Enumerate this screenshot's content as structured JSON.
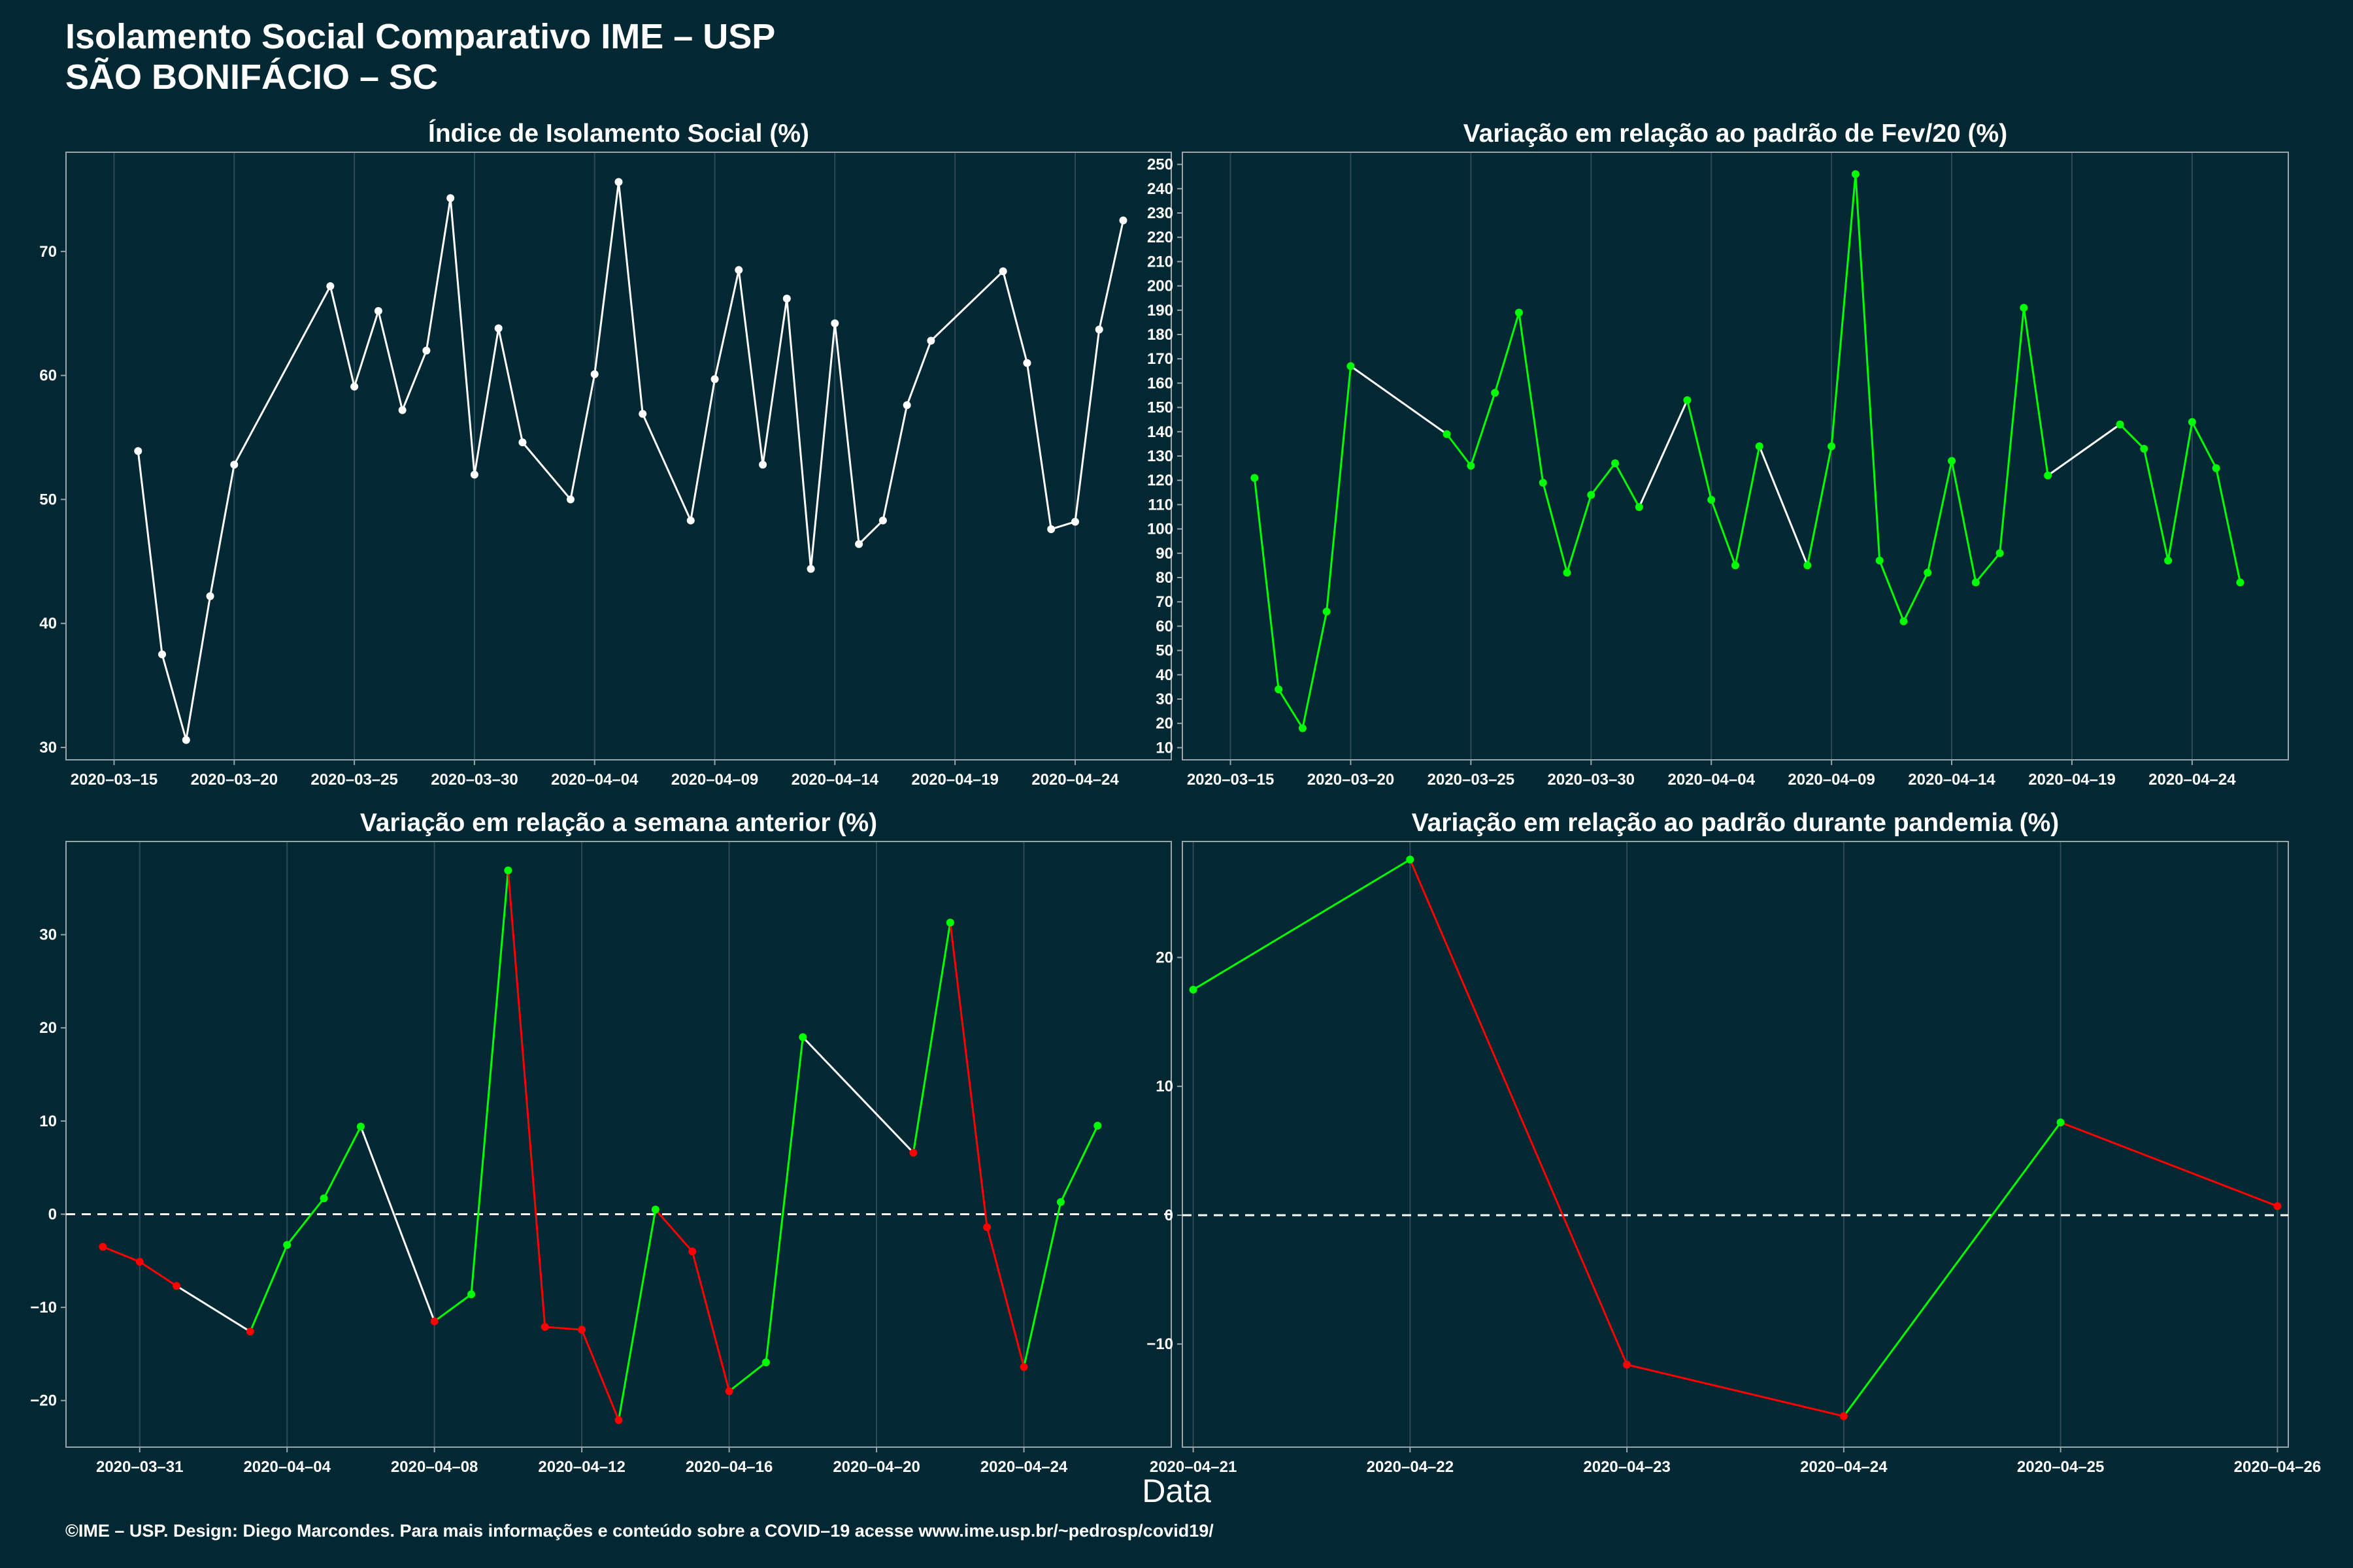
{
  "figure": {
    "title": "Isolamento Social Comparativo IME – USP",
    "subtitle": "SÃO BONIFÁCIO – SC",
    "xlabel": "Data",
    "footer": "©IME – USP. Design: Diego Marcondes. Para mais informações e conteúdo sobre a COVID–19 acesse www.ime.usp.br/~pedrosp/covid19/"
  },
  "colors": {
    "background": "#022833",
    "neutral": "#ffffff",
    "increase": "#00ff00",
    "decrease": "#ff0000",
    "axis": "#9aa5a9",
    "grid": "#2e4a55"
  },
  "chart_data": [
    {
      "type": "line",
      "title": "Índice de Isolamento Social (%)",
      "color_rule": "white",
      "x_range": [
        "2020-03-13",
        "2020-04-28"
      ],
      "ylim": [
        29,
        78
      ],
      "y_ticks": [
        30,
        40,
        50,
        60,
        70
      ],
      "x_ticks": [
        "2020-03-15",
        "2020-03-20",
        "2020-03-25",
        "2020-03-30",
        "2020-04-04",
        "2020-04-09",
        "2020-04-14",
        "2020-04-19",
        "2020-04-24"
      ],
      "x_tick_labels": [
        "2020–03–15",
        "2020–03–20",
        "2020–03–25",
        "2020–03–30",
        "2020–04–04",
        "2020–04–09",
        "2020–04–14",
        "2020–04–19",
        "2020–04–24"
      ],
      "points": [
        [
          "2020-03-16",
          53.9
        ],
        [
          "2020-03-17",
          37.5
        ],
        [
          "2020-03-18",
          30.6
        ],
        [
          "2020-03-19",
          42.2
        ],
        [
          "2020-03-20",
          52.8
        ],
        [
          "2020-03-24",
          67.2
        ],
        [
          "2020-03-25",
          59.1
        ],
        [
          "2020-03-26",
          65.2
        ],
        [
          "2020-03-27",
          57.2
        ],
        [
          "2020-03-28",
          62.0
        ],
        [
          "2020-03-29",
          74.3
        ],
        [
          "2020-03-30",
          52.0
        ],
        [
          "2020-03-31",
          63.8
        ],
        [
          "2020-04-01",
          54.6
        ],
        [
          "2020-04-03",
          50.0
        ],
        [
          "2020-04-04",
          60.1
        ],
        [
          "2020-04-05",
          75.6
        ],
        [
          "2020-04-06",
          56.9
        ],
        [
          "2020-04-08",
          48.3
        ],
        [
          "2020-04-09",
          59.7
        ],
        [
          "2020-04-10",
          68.5
        ],
        [
          "2020-04-11",
          52.8
        ],
        [
          "2020-04-12",
          66.2
        ],
        [
          "2020-04-13",
          44.4
        ],
        [
          "2020-04-14",
          64.2
        ],
        [
          "2020-04-15",
          46.4
        ],
        [
          "2020-04-16",
          48.3
        ],
        [
          "2020-04-17",
          57.6
        ],
        [
          "2020-04-18",
          62.8
        ],
        [
          "2020-04-21",
          68.4
        ],
        [
          "2020-04-22",
          61.0
        ],
        [
          "2020-04-23",
          47.6
        ],
        [
          "2020-04-24",
          48.2
        ],
        [
          "2020-04-25",
          63.7
        ],
        [
          "2020-04-26",
          72.5
        ]
      ]
    },
    {
      "type": "line",
      "title": "Variação em relação ao padrão de Fev/20 (%)",
      "color_rule": "consecutive-day-green",
      "x_range": [
        "2020-03-13",
        "2020-04-28"
      ],
      "ylim": [
        5,
        255
      ],
      "y_ticks": [
        10,
        20,
        30,
        40,
        50,
        60,
        70,
        80,
        90,
        100,
        110,
        120,
        130,
        140,
        150,
        160,
        170,
        180,
        190,
        200,
        210,
        220,
        230,
        240,
        250
      ],
      "x_ticks": [
        "2020-03-15",
        "2020-03-20",
        "2020-03-25",
        "2020-03-30",
        "2020-04-04",
        "2020-04-09",
        "2020-04-14",
        "2020-04-19",
        "2020-04-24"
      ],
      "x_tick_labels": [
        "2020–03–15",
        "2020–03–20",
        "2020–03–25",
        "2020–03–30",
        "2020–04–04",
        "2020–04–09",
        "2020–04–14",
        "2020–04–19",
        "2020–04–24"
      ],
      "points": [
        [
          "2020-03-16",
          121
        ],
        [
          "2020-03-17",
          34
        ],
        [
          "2020-03-18",
          18
        ],
        [
          "2020-03-19",
          66
        ],
        [
          "2020-03-20",
          167
        ],
        [
          "2020-03-24",
          139
        ],
        [
          "2020-03-25",
          126
        ],
        [
          "2020-03-26",
          156
        ],
        [
          "2020-03-27",
          189
        ],
        [
          "2020-03-28",
          119
        ],
        [
          "2020-03-29",
          82
        ],
        [
          "2020-03-30",
          114
        ],
        [
          "2020-03-31",
          127
        ],
        [
          "2020-04-01",
          109
        ],
        [
          "2020-04-03",
          153
        ],
        [
          "2020-04-04",
          112
        ],
        [
          "2020-04-05",
          85
        ],
        [
          "2020-04-06",
          134
        ],
        [
          "2020-04-08",
          85
        ],
        [
          "2020-04-09",
          134
        ],
        [
          "2020-04-10",
          246
        ],
        [
          "2020-04-11",
          87
        ],
        [
          "2020-04-12",
          62
        ],
        [
          "2020-04-13",
          82
        ],
        [
          "2020-04-14",
          128
        ],
        [
          "2020-04-15",
          78
        ],
        [
          "2020-04-16",
          90
        ],
        [
          "2020-04-17",
          191
        ],
        [
          "2020-04-18",
          122
        ],
        [
          "2020-04-21",
          143
        ],
        [
          "2020-04-22",
          133
        ],
        [
          "2020-04-23",
          87
        ],
        [
          "2020-04-24",
          144
        ],
        [
          "2020-04-25",
          125
        ],
        [
          "2020-04-26",
          78
        ]
      ]
    },
    {
      "type": "line",
      "title": "Variação em relação a semana anterior (%)",
      "color_rule": "sign-of-change",
      "reference_line": 0,
      "x_range": [
        "2020-03-29",
        "2020-04-28"
      ],
      "ylim": [
        -25,
        40
      ],
      "y_ticks": [
        -20,
        -10,
        0,
        10,
        20,
        30
      ],
      "y_tick_labels": [
        "−20",
        "−10",
        "0",
        "10",
        "20",
        "30"
      ],
      "x_ticks": [
        "2020-03-31",
        "2020-04-04",
        "2020-04-08",
        "2020-04-12",
        "2020-04-16",
        "2020-04-20",
        "2020-04-24"
      ],
      "x_tick_labels": [
        "2020–03–31",
        "2020–04–04",
        "2020–04–08",
        "2020–04–12",
        "2020–04–16",
        "2020–04–20",
        "2020–04–24"
      ],
      "points": [
        [
          "2020-03-30",
          -3.5
        ],
        [
          "2020-03-31",
          -5.1
        ],
        [
          "2020-04-01",
          -7.7
        ],
        [
          "2020-04-03",
          -12.6
        ],
        [
          "2020-04-04",
          -3.3
        ],
        [
          "2020-04-05",
          1.7
        ],
        [
          "2020-04-06",
          9.4
        ],
        [
          "2020-04-08",
          -11.5
        ],
        [
          "2020-04-09",
          -8.6
        ],
        [
          "2020-04-10",
          36.9
        ],
        [
          "2020-04-11",
          -12.1
        ],
        [
          "2020-04-12",
          -12.4
        ],
        [
          "2020-04-13",
          -22.1
        ],
        [
          "2020-04-14",
          0.5
        ],
        [
          "2020-04-15",
          -4.0
        ],
        [
          "2020-04-16",
          -19.0
        ],
        [
          "2020-04-17",
          -15.9
        ],
        [
          "2020-04-18",
          19.0
        ],
        [
          "2020-04-21",
          6.6
        ],
        [
          "2020-04-22",
          31.3
        ],
        [
          "2020-04-23",
          -1.4
        ],
        [
          "2020-04-24",
          -16.4
        ],
        [
          "2020-04-25",
          1.3
        ],
        [
          "2020-04-26",
          9.5
        ]
      ]
    },
    {
      "type": "line",
      "title": "Variação em relação ao padrão durante pandemia (%)",
      "color_rule": "sign-of-change",
      "reference_line": 0,
      "x_range": [
        "2020-04-20.95",
        "2020-04-26.05"
      ],
      "ylim": [
        -18,
        29
      ],
      "y_ticks": [
        -10,
        0,
        10,
        20
      ],
      "y_tick_labels": [
        "−10",
        "0",
        "10",
        "20"
      ],
      "x_ticks": [
        "2020-04-21",
        "2020-04-22",
        "2020-04-23",
        "2020-04-24",
        "2020-04-25",
        "2020-04-26"
      ],
      "x_tick_labels": [
        "2020–04–21",
        "2020–04–22",
        "2020–04–23",
        "2020–04–24",
        "2020–04–25",
        "2020–04–26"
      ],
      "points": [
        [
          "2020-04-21",
          17.5
        ],
        [
          "2020-04-22",
          27.6
        ],
        [
          "2020-04-23",
          -11.6
        ],
        [
          "2020-04-24",
          -15.6
        ],
        [
          "2020-04-25",
          7.2
        ],
        [
          "2020-04-26",
          0.7
        ]
      ]
    }
  ]
}
